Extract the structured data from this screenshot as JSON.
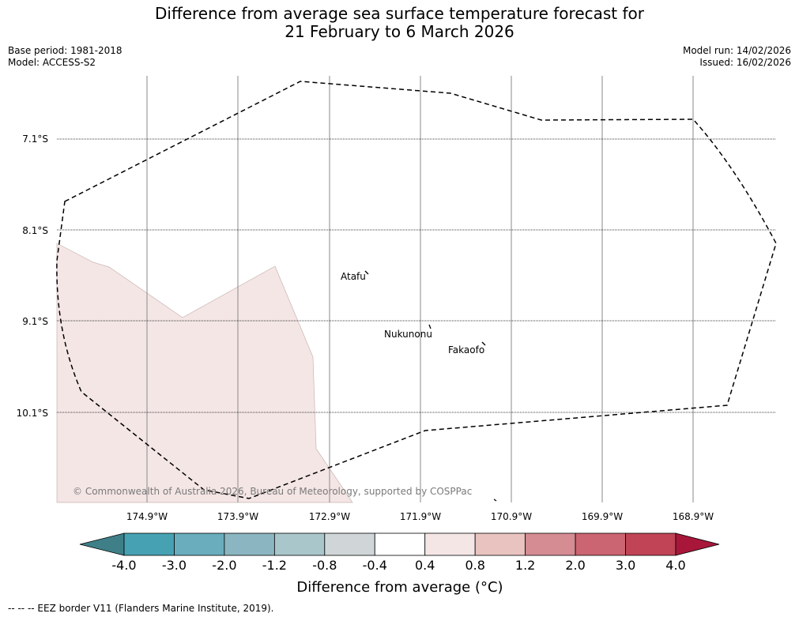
{
  "title": {
    "line1": "Difference from average sea surface temperature forecast for",
    "line2": "21 February to 6 March 2026"
  },
  "meta": {
    "base_period": "Base period: 1981-2018",
    "model": "Model: ACCESS-S2",
    "model_run": "Model run: 14/02/2026",
    "issued": "Issued: 16/02/2026"
  },
  "map": {
    "lat_labels": [
      "7.1°S",
      "8.1°S",
      "9.1°S",
      "10.1°S"
    ],
    "lon_labels": [
      "174.9°W",
      "173.9°W",
      "172.9°W",
      "171.9°W",
      "170.9°W",
      "169.9°W",
      "168.9°W"
    ],
    "places": [
      "Atafu",
      "Nukunonu",
      "Fakaofo"
    ],
    "copyright": "© Commonwealth of Australia 2026, Bureau of Meteorology, supported by COSPPac",
    "anomaly_fill_color": "#f4e6e5"
  },
  "colorbar": {
    "ticks": [
      "-4.0",
      "-3.0",
      "-2.0",
      "-1.2",
      "-0.8",
      "-0.4",
      "0.4",
      "0.8",
      "1.2",
      "2.0",
      "3.0",
      "4.0"
    ],
    "colors": [
      "#3e7f88",
      "#46a2b3",
      "#6aadbd",
      "#8bb6c1",
      "#a9c6cb",
      "#d0d6d7",
      "#ffffff",
      "#f4e6e5",
      "#e8c3c0",
      "#d58c93",
      "#cb6571",
      "#c04456",
      "#a8173a"
    ],
    "label": "Difference from average (°C)"
  },
  "footer": {
    "legend": "-- -- -- EEZ border V11 (Flanders Marine Institute, 2019)."
  }
}
